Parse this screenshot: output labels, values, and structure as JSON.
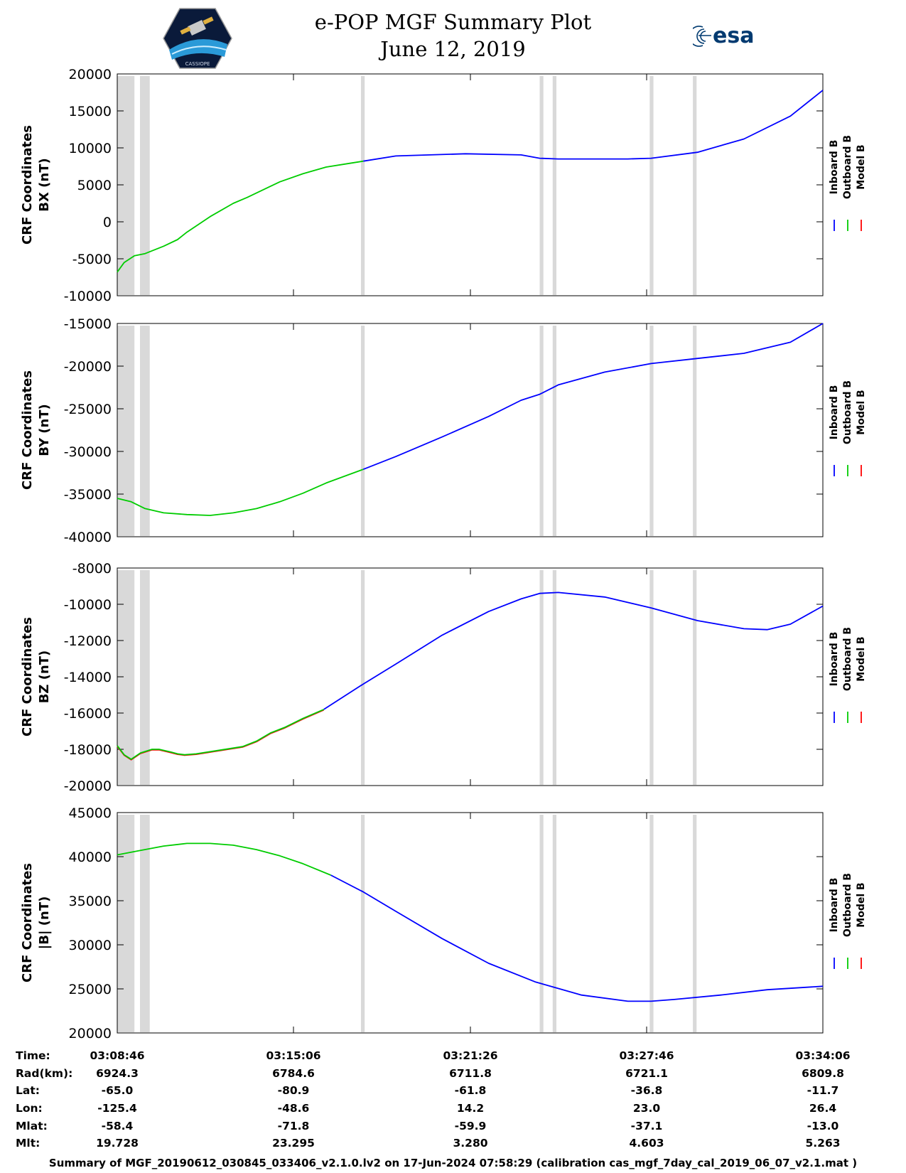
{
  "title": "e-POP MGF Summary Plot",
  "date": "June 12, 2019",
  "logo_right_text": "esa",
  "logo_left_text": "CASSIOPE",
  "legend": [
    {
      "label": "Inboard B",
      "color": "#0000ff"
    },
    {
      "label": "Outboard B",
      "color": "#00cc00"
    },
    {
      "label": "Model B",
      "color": "#ff0000"
    }
  ],
  "chart_data": [
    {
      "type": "line",
      "ylabel1": "CRF Coordinates",
      "ylabel2": "BX (nT)",
      "ylim": [
        -10000,
        20000
      ],
      "yticks": [
        20000,
        15000,
        10000,
        5000,
        0,
        -5000,
        -10000
      ],
      "xlim": [
        0,
        1520
      ],
      "x_unit": "seconds after 03:08:46",
      "gaps": [
        [
          0,
          37
        ],
        [
          49,
          70
        ],
        [
          525,
          533
        ],
        [
          910,
          918
        ],
        [
          938,
          946
        ],
        [
          1147,
          1155
        ],
        [
          1240,
          1248
        ]
      ],
      "green_until": 530,
      "series": [
        {
          "name": "Inboard B",
          "x": [
            530,
            600,
            750,
            870,
            910,
            950,
            1100,
            1150,
            1250,
            1350,
            1450,
            1520
          ],
          "y": [
            8200,
            8900,
            9200,
            9050,
            8600,
            8500,
            8500,
            8600,
            9400,
            11200,
            14300,
            17800
          ]
        },
        {
          "name": "Outboard B",
          "x": [
            0,
            15,
            37,
            60,
            100,
            130,
            150,
            200,
            250,
            280,
            350,
            400,
            450,
            500,
            530
          ],
          "y": [
            -6800,
            -5500,
            -4600,
            -4300,
            -3300,
            -2400,
            -1400,
            700,
            2500,
            3300,
            5400,
            6500,
            7400,
            7900,
            8200
          ]
        },
        {
          "name": "Model B",
          "x": [],
          "y": []
        }
      ]
    },
    {
      "type": "line",
      "ylabel1": "CRF Coordinates",
      "ylabel2": "BY (nT)",
      "ylim": [
        -40000,
        -15000
      ],
      "yticks": [
        -15000,
        -20000,
        -25000,
        -30000,
        -35000,
        -40000
      ],
      "xlim": [
        0,
        1520
      ],
      "x_unit": "seconds after 03:08:46",
      "gaps": [
        [
          0,
          37
        ],
        [
          49,
          70
        ],
        [
          525,
          533
        ],
        [
          910,
          918
        ],
        [
          938,
          946
        ],
        [
          1147,
          1155
        ],
        [
          1240,
          1248
        ]
      ],
      "green_until": 530,
      "series": [
        {
          "name": "Inboard B",
          "x": [
            530,
            600,
            700,
            800,
            870,
            910,
            950,
            1050,
            1150,
            1250,
            1350,
            1450,
            1520
          ],
          "y": [
            -32100,
            -30600,
            -28300,
            -25900,
            -24000,
            -23300,
            -22200,
            -20700,
            -19700,
            -19100,
            -18500,
            -17200,
            -15000
          ]
        },
        {
          "name": "Outboard B",
          "x": [
            0,
            30,
            60,
            100,
            150,
            200,
            250,
            300,
            350,
            400,
            450,
            500,
            530
          ],
          "y": [
            -35500,
            -35900,
            -36700,
            -37200,
            -37400,
            -37500,
            -37200,
            -36700,
            -35900,
            -34900,
            -33700,
            -32700,
            -32100
          ]
        },
        {
          "name": "Model B",
          "x": [],
          "y": []
        }
      ]
    },
    {
      "type": "line",
      "ylabel1": "CRF Coordinates",
      "ylabel2": "BZ (nT)",
      "ylim": [
        -20000,
        -8000
      ],
      "yticks": [
        -8000,
        -10000,
        -12000,
        -14000,
        -16000,
        -18000,
        -20000
      ],
      "xlim": [
        0,
        1520
      ],
      "x_unit": "seconds after 03:08:46",
      "gaps": [
        [
          0,
          37
        ],
        [
          49,
          70
        ],
        [
          525,
          533
        ],
        [
          910,
          918
        ],
        [
          938,
          946
        ],
        [
          1147,
          1155
        ],
        [
          1240,
          1248
        ]
      ],
      "green_until": 445,
      "series": [
        {
          "name": "Inboard B",
          "x": [
            445,
            530,
            600,
            700,
            800,
            870,
            910,
            950,
            1050,
            1150,
            1250,
            1350,
            1400,
            1450,
            1520
          ],
          "y": [
            -15800,
            -14400,
            -13300,
            -11700,
            -10400,
            -9700,
            -9400,
            -9350,
            -9600,
            -10200,
            -10900,
            -11350,
            -11400,
            -11100,
            -10100
          ]
        },
        {
          "name": "Outboard B",
          "x": [
            0,
            15,
            30,
            50,
            75,
            90,
            115,
            130,
            145,
            170,
            220,
            270,
            300,
            330,
            360,
            400,
            445
          ],
          "y": [
            -17800,
            -18300,
            -18550,
            -18200,
            -18000,
            -18000,
            -18150,
            -18250,
            -18300,
            -18250,
            -18050,
            -17850,
            -17550,
            -17100,
            -16800,
            -16300,
            -15800
          ]
        },
        {
          "name": "Model B",
          "x": [
            0,
            15,
            30,
            50,
            75,
            90,
            115,
            130,
            145,
            170,
            220,
            270,
            300,
            330,
            360,
            400,
            445
          ],
          "y": [
            -17830,
            -18330,
            -18580,
            -18230,
            -18030,
            -18030,
            -18180,
            -18280,
            -18330,
            -18280,
            -18080,
            -17880,
            -17580,
            -17130,
            -16830,
            -16330,
            -15830
          ]
        }
      ]
    },
    {
      "type": "line",
      "ylabel1": "CRF Coordinates",
      "ylabel2": "|B| (nT)",
      "ylim": [
        20000,
        45000
      ],
      "yticks": [
        45000,
        40000,
        35000,
        30000,
        25000,
        20000
      ],
      "xlim": [
        0,
        1520
      ],
      "x_unit": "seconds after 03:08:46",
      "gaps": [
        [
          0,
          37
        ],
        [
          49,
          70
        ],
        [
          525,
          533
        ],
        [
          910,
          918
        ],
        [
          938,
          946
        ],
        [
          1147,
          1155
        ],
        [
          1240,
          1248
        ]
      ],
      "green_until": 460,
      "series": [
        {
          "name": "Inboard B",
          "x": [
            460,
            530,
            600,
            700,
            800,
            900,
            1000,
            1100,
            1150,
            1200,
            1300,
            1400,
            1520
          ],
          "y": [
            37900,
            36000,
            33800,
            30700,
            27900,
            25800,
            24300,
            23600,
            23600,
            23800,
            24300,
            24900,
            25300
          ]
        },
        {
          "name": "Outboard B",
          "x": [
            0,
            50,
            100,
            150,
            200,
            250,
            300,
            350,
            400,
            460
          ],
          "y": [
            40200,
            40700,
            41200,
            41500,
            41500,
            41300,
            40800,
            40100,
            39200,
            37900
          ]
        },
        {
          "name": "Model B",
          "x": [],
          "y": []
        }
      ]
    }
  ],
  "table": {
    "row_labels": [
      "Time:",
      "Rad(km):",
      "Lat:",
      "Lon:",
      "Mlat:",
      "Mlt:"
    ],
    "columns": [
      [
        "03:08:46",
        "6924.3",
        "-65.0",
        "-125.4",
        "-58.4",
        "19.728"
      ],
      [
        "03:15:06",
        "6784.6",
        "-80.9",
        "-48.6",
        "-71.8",
        "23.295"
      ],
      [
        "03:21:26",
        "6711.8",
        "-61.8",
        "14.2",
        "-59.9",
        "3.280"
      ],
      [
        "03:27:46",
        "6721.1",
        "-36.8",
        "23.0",
        "-37.1",
        "4.603"
      ],
      [
        "03:34:06",
        "6809.8",
        "-11.7",
        "26.4",
        "-13.0",
        "5.263"
      ]
    ]
  },
  "footer": "Summary of MGF_20190612_030845_033406_v2.1.0.lv2 on 17-Jun-2024 07:58:29 (calibration cas_mgf_7day_cal_2019_06_07_v2.1.mat )"
}
